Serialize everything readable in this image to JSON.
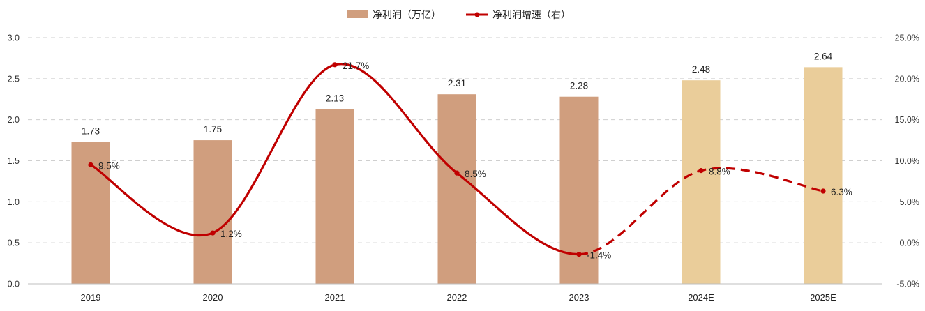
{
  "chart_data": {
    "type": "bar",
    "categories": [
      "2019",
      "2020",
      "2021",
      "2022",
      "2023",
      "2024E",
      "2025E"
    ],
    "series": [
      {
        "name": "净利润（万亿）",
        "type": "bar",
        "axis": "left",
        "values": [
          1.73,
          1.75,
          2.13,
          2.31,
          2.28,
          2.48,
          2.64
        ],
        "labels": [
          "1.73",
          "1.75",
          "2.13",
          "2.31",
          "2.28",
          "2.48",
          "2.64"
        ],
        "colors": [
          "#D09E7E",
          "#D09E7E",
          "#D09E7E",
          "#D09E7E",
          "#D09E7E",
          "#EACD9A",
          "#EACD9A"
        ]
      },
      {
        "name": "净利润增速（右）",
        "type": "line",
        "axis": "right",
        "values": [
          9.5,
          1.2,
          21.7,
          8.5,
          -1.4,
          8.8,
          6.3
        ],
        "labels": [
          "9.5%",
          "1.2%",
          "21.7%",
          "8.5%",
          "-1.4%",
          "8.8%",
          "6.3%"
        ],
        "color": "#C00000",
        "line_style": "smooth; solid through 2023, dashed for 2024E-2025E"
      }
    ],
    "y_left": {
      "range": [
        0,
        3.0
      ],
      "ticks": [
        "0.0",
        "0.5",
        "1.0",
        "1.5",
        "2.0",
        "2.5",
        "3.0"
      ]
    },
    "y_right": {
      "range": [
        -5,
        25
      ],
      "ticks": [
        "-5.0%",
        "0.0%",
        "5.0%",
        "10.0%",
        "15.0%",
        "20.0%",
        "25.0%"
      ]
    },
    "grid": "horizontal dashed",
    "legend_position": "top-center"
  }
}
